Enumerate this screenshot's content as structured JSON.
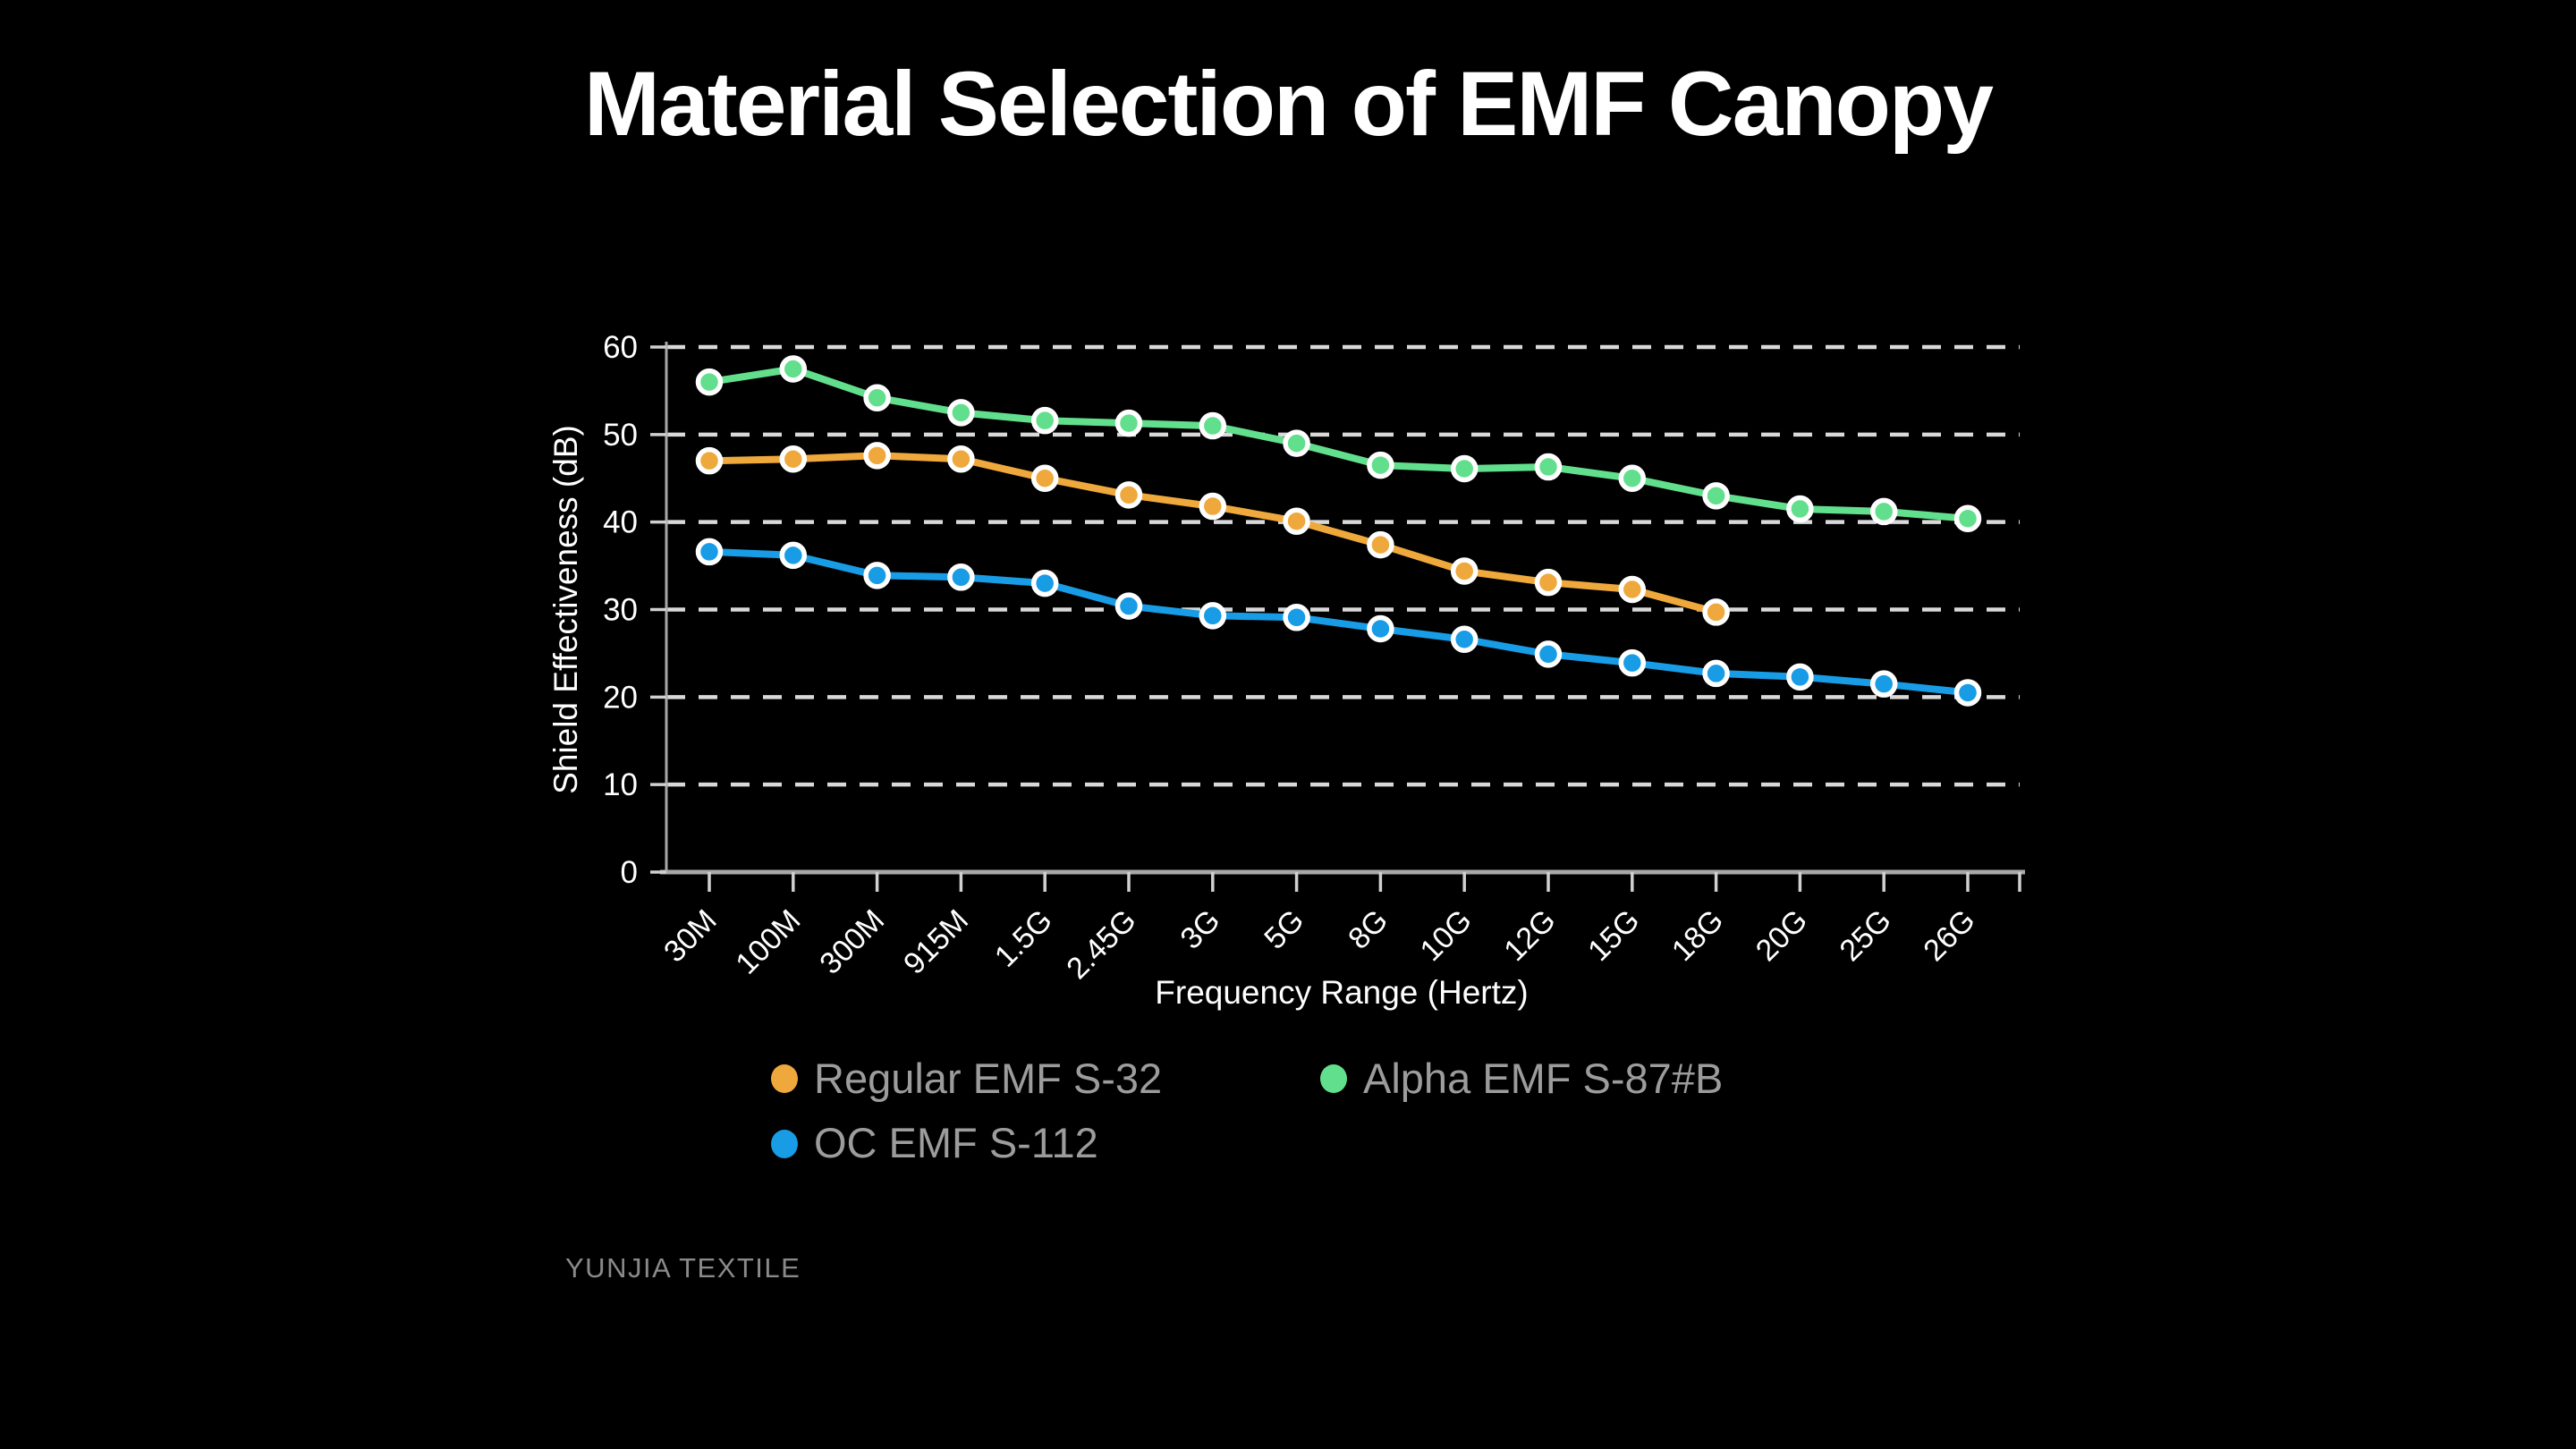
{
  "title": "Material Selection of EMF Canopy",
  "footer": "YUNJIA TEXTILE",
  "colors": {
    "background": "#000000",
    "title_text": "#ffffff",
    "grid_line": "#d9d9d9",
    "axis_line": "#a8a8a8",
    "tick_mark": "#d0d0d0",
    "tick_label": "#ffffff",
    "axis_title": "#ffffff",
    "marker_ring": "#ffffff",
    "legend_text": "#9c9c9c",
    "footer_text": "#8a8a8a"
  },
  "chart_data": {
    "type": "line",
    "title": "Material Selection of EMF Canopy",
    "xlabel": "Frequency Range (Hertz)",
    "ylabel": "Shield Effectiveness (dB)",
    "ylim": [
      0,
      60
    ],
    "ytick_step": 10,
    "yticks": [
      0,
      10,
      20,
      30,
      40,
      50,
      60
    ],
    "grid": "horizontal-dashed",
    "legend_position": "bottom",
    "categories": [
      "30M",
      "100M",
      "300M",
      "915M",
      "1.5G",
      "2.45G",
      "3G",
      "5G",
      "8G",
      "10G",
      "12G",
      "15G",
      "18G",
      "20G",
      "25G",
      "26G"
    ],
    "series": [
      {
        "name": "Regular EMF S-32",
        "color": "#EFA83C",
        "values": [
          47,
          47.2,
          47.6,
          47.2,
          45,
          43.1,
          41.8,
          40.1,
          37.4,
          34.4,
          33.1,
          32.3,
          29.7,
          null,
          null,
          null
        ]
      },
      {
        "name": "Alpha EMF S-87#B",
        "color": "#62DF8C",
        "values": [
          56,
          57.5,
          54.2,
          52.5,
          51.6,
          51.3,
          51,
          49,
          46.5,
          46.1,
          46.3,
          45,
          43,
          41.5,
          41.2,
          40.4
        ]
      },
      {
        "name": "OC EMF S-112",
        "color": "#189CE6",
        "values": [
          36.6,
          36.2,
          33.9,
          33.7,
          33,
          30.4,
          29.3,
          29.1,
          27.8,
          26.6,
          24.9,
          23.9,
          22.7,
          22.3,
          21.5,
          20.5
        ]
      }
    ],
    "legend_rows": [
      [
        "Regular EMF S-32",
        "Alpha EMF S-87#B"
      ],
      [
        "OC EMF S-112"
      ]
    ]
  }
}
